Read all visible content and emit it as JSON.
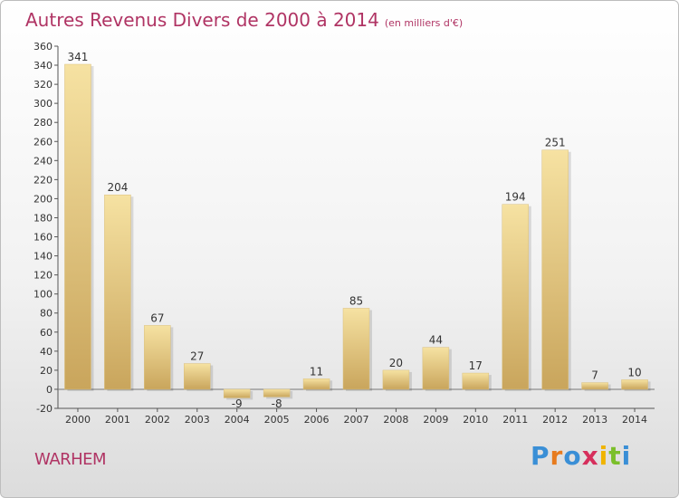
{
  "header": {
    "title": "Autres Revenus Divers de 2000 à 2014",
    "subtitle": "(en milliers d'€)"
  },
  "footer": {
    "place": "WARHEM",
    "logo": {
      "text": "Proxiti",
      "letters": [
        "P",
        "r",
        "o",
        "x",
        "i",
        "t",
        "i"
      ],
      "colors": [
        "#3a8fd6",
        "#e77b1e",
        "#3a8fd6",
        "#d62f5c",
        "#f0b400",
        "#7bbf2a",
        "#3a8fd6"
      ]
    }
  },
  "colors": {
    "bar_light": "#f6e2a2",
    "bar_dark": "#c9a55c",
    "title": "#b03464"
  },
  "chart_data": {
    "type": "bar",
    "categories": [
      "2000",
      "2001",
      "2002",
      "2003",
      "2004",
      "2005",
      "2006",
      "2007",
      "2008",
      "2009",
      "2010",
      "2011",
      "2012",
      "2013",
      "2014"
    ],
    "values": [
      341,
      204,
      67,
      27,
      -9,
      -8,
      11,
      85,
      20,
      44,
      17,
      194,
      251,
      7,
      10
    ],
    "value_labels": [
      "341",
      "204",
      "67",
      "27",
      "-9",
      "-8",
      "11",
      "85",
      "20",
      "44",
      "17",
      "194",
      "251",
      "7",
      "10"
    ],
    "ylim": [
      -20,
      360
    ],
    "yticks": [
      -20,
      0,
      20,
      40,
      60,
      80,
      100,
      120,
      140,
      160,
      180,
      200,
      220,
      240,
      260,
      280,
      300,
      320,
      340,
      360
    ],
    "grid": false,
    "legend": "none"
  }
}
